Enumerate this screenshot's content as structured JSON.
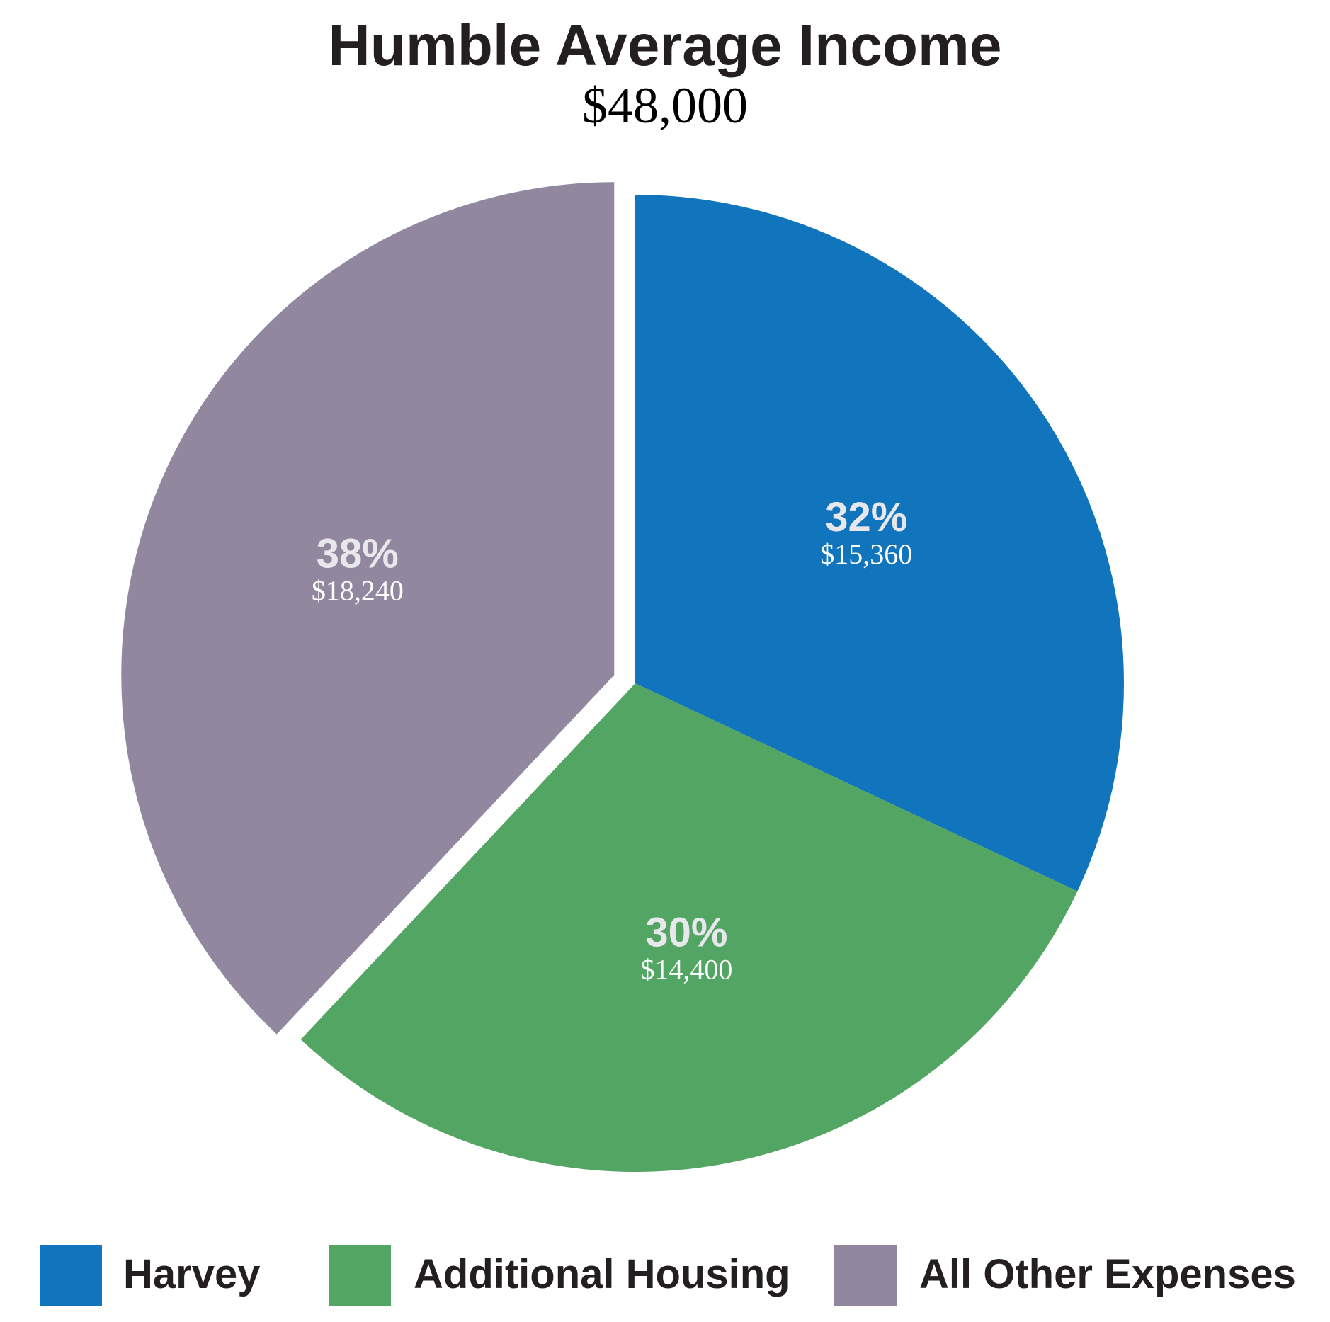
{
  "chart_data": {
    "type": "pie",
    "title": "Humble Average Income",
    "subtitle": "$48,000",
    "slices": [
      {
        "label": "Harvey",
        "percent_label": "32%",
        "amount_label": "$15,360",
        "value": 15360,
        "color": "#1075bd"
      },
      {
        "label": "Additional Housing",
        "percent_label": "30%",
        "amount_label": "$14,400",
        "value": 14400,
        "color": "#52a562"
      },
      {
        "label": "All Other Expenses",
        "percent_label": "38%",
        "amount_label": "$18,240",
        "value": 18240,
        "color": "#9188a0"
      }
    ],
    "legend_position": "bottom",
    "exploded_slice": "All Other Expenses"
  }
}
